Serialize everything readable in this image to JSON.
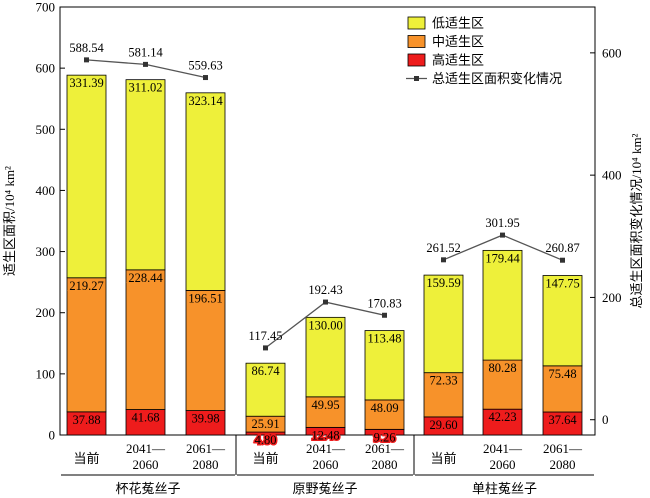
{
  "chart_data": {
    "type": "bar",
    "stacked": true,
    "left_axis": {
      "label": "适生区面积/10⁴ km²",
      "ylim": [
        0,
        700
      ],
      "ticks": [
        0,
        100,
        200,
        300,
        400,
        500,
        600,
        700
      ]
    },
    "right_axis": {
      "label": "总适生区面积变化情况/10⁴ km²",
      "ylim": [
        -25,
        675
      ],
      "ticks": [
        0,
        200,
        400,
        600
      ]
    },
    "groups": [
      {
        "name": "杯花菟丝子",
        "categories": [
          [
            "当前"
          ],
          [
            "2041—",
            "2060"
          ],
          [
            "2061—",
            "2080"
          ]
        ]
      },
      {
        "name": "原野菟丝子",
        "categories": [
          [
            "当前"
          ],
          [
            "2041—",
            "2060"
          ],
          [
            "2061—",
            "2080"
          ]
        ]
      },
      {
        "name": "单柱菟丝子",
        "categories": [
          [
            "当前"
          ],
          [
            "2041—",
            "2060"
          ],
          [
            "2061—",
            "2080"
          ]
        ]
      }
    ],
    "series": [
      {
        "name": "高适生区",
        "color": "#ee1c1c",
        "values": [
          37.88,
          41.68,
          39.98,
          4.8,
          12.48,
          9.26,
          29.6,
          42.23,
          37.64
        ],
        "labels": [
          "37.88",
          "41.68",
          "39.98",
          "4.80",
          "12.48",
          "9.26",
          "29.60",
          "42.23",
          "37.64"
        ]
      },
      {
        "name": "中适生区",
        "color": "#f7922a",
        "values": [
          219.27,
          228.44,
          196.51,
          25.91,
          49.95,
          48.09,
          72.33,
          80.28,
          75.48
        ],
        "labels": [
          "219.27",
          "228.44",
          "196.51",
          "25.91",
          "49.95",
          "48.09",
          "72.33",
          "80.28",
          "75.48"
        ]
      },
      {
        "name": "低适生区",
        "color": "#eef03a",
        "values": [
          331.39,
          311.02,
          323.14,
          86.74,
          130.0,
          113.48,
          159.59,
          179.44,
          147.75
        ],
        "labels": [
          "331.39",
          "311.02",
          "323.14",
          "86.74",
          "130.00",
          "113.48",
          "159.59",
          "179.44",
          "147.75"
        ]
      }
    ],
    "line": {
      "name": "总适生区面积变化情况",
      "color": "#555555",
      "values": [
        588.54,
        581.14,
        559.63,
        117.45,
        192.43,
        170.83,
        261.52,
        301.95,
        260.87
      ],
      "labels": [
        "588.54",
        "581.14",
        "559.63",
        "117.45",
        "192.43",
        "170.83",
        "261.52",
        "301.95",
        "260.87"
      ]
    },
    "legend": {
      "position": "top-right",
      "items": [
        {
          "label": "低适生区",
          "color": "#eef03a",
          "kind": "box"
        },
        {
          "label": "中适生区",
          "color": "#f7922a",
          "kind": "box"
        },
        {
          "label": "高适生区",
          "color": "#ee1c1c",
          "kind": "box"
        },
        {
          "label": "总适生区面积变化情况",
          "color": "#555555",
          "kind": "line"
        }
      ]
    },
    "grid": false
  }
}
